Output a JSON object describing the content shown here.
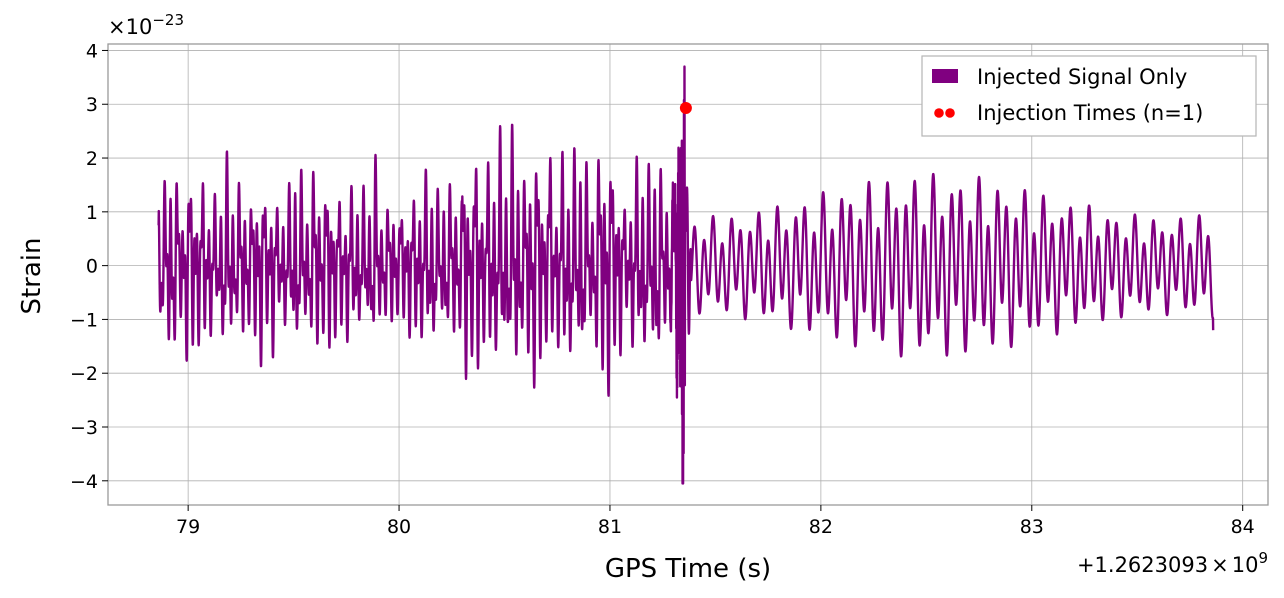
{
  "chart_data": {
    "type": "line",
    "xlabel": "GPS Time (s)",
    "ylabel": "Strain",
    "x_offset": {
      "prefix": "+1.2623093",
      "times": "×",
      "base": "10",
      "exponent": "9"
    },
    "y_multiplier": {
      "times": "×",
      "base": "10",
      "exponent": "−23"
    },
    "xlim": [
      78.62,
      84.12
    ],
    "ylim": [
      -4.45,
      4.12
    ],
    "xticks": [
      79,
      80,
      81,
      82,
      83,
      84
    ],
    "xtick_labels": [
      "79",
      "80",
      "81",
      "82",
      "83",
      "84"
    ],
    "yticks": [
      -4,
      -3,
      -2,
      -1,
      0,
      1,
      2,
      3,
      4
    ],
    "ytick_labels": [
      "−4",
      "−3",
      "−2",
      "−1",
      "0",
      "1",
      "2",
      "3",
      "4"
    ],
    "grid": true,
    "legend_placement": "upper-right",
    "series": [
      {
        "name": "Injected Signal Only",
        "color": "#800080",
        "x_range": [
          78.86,
          83.86
        ],
        "envelope_before_merger": [
          1.6,
          2.4
        ],
        "merger_time": 81.355,
        "merger_peak_max": 3.7,
        "merger_peak_min": -4.05,
        "envelope_after_merger": [
          1.0,
          1.8
        ],
        "start_value": 0.75,
        "end_value": -1.2
      },
      {
        "name": "Injection Times (n=1)",
        "color": "#ff0000",
        "marker": "dot",
        "points": [
          {
            "x": 81.36,
            "y": 2.93
          }
        ]
      }
    ]
  }
}
